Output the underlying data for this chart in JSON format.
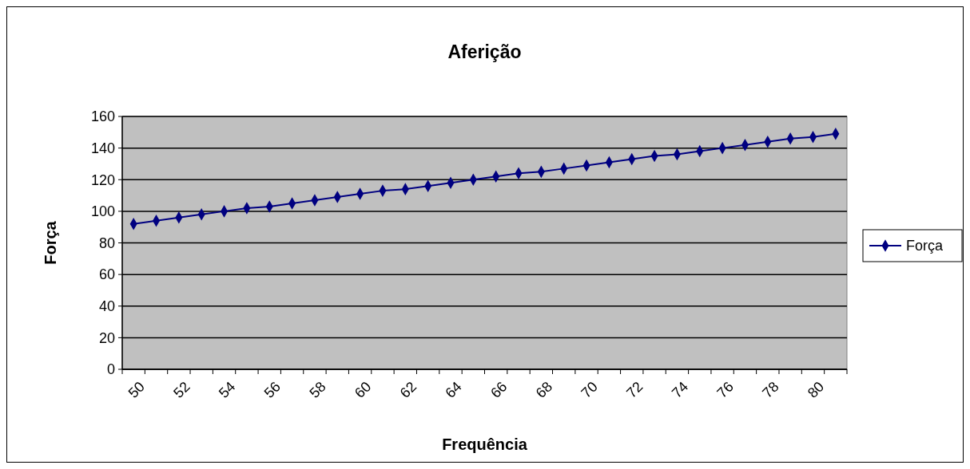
{
  "chart_data": {
    "type": "line",
    "title": "Aferição",
    "xlabel": "Frequência",
    "ylabel": "Força",
    "categories": [
      "50",
      null,
      "52",
      null,
      "54",
      null,
      "56",
      null,
      "58",
      null,
      "60",
      null,
      "62",
      null,
      "64",
      null,
      "66",
      null,
      "68",
      null,
      "70",
      null,
      "72",
      null,
      "74",
      null,
      "76",
      null,
      "78",
      null,
      "80",
      null
    ],
    "series": [
      {
        "name": "Força",
        "color": "#000080",
        "values": [
          92,
          94,
          96,
          98,
          100,
          102,
          103,
          105,
          107,
          109,
          111,
          113,
          114,
          116,
          118,
          120,
          122,
          124,
          125,
          127,
          129,
          131,
          133,
          135,
          136,
          138,
          140,
          142,
          144,
          146,
          147,
          149
        ]
      }
    ],
    "ylim": [
      0,
      160
    ],
    "yticks": [
      0,
      20,
      40,
      60,
      80,
      100,
      120,
      140,
      160
    ],
    "grid": "y",
    "legend": "right",
    "marker": "diamond"
  }
}
